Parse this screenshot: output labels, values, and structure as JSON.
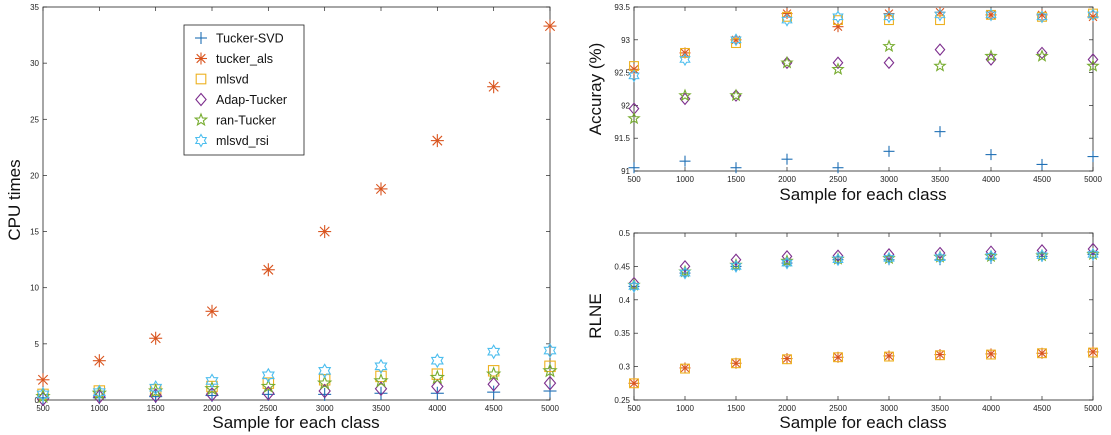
{
  "colors": {
    "Tucker-SVD": "#1f6fb5",
    "tucker_als": "#d9541e",
    "mlsvd": "#edb120",
    "Adap-Tucker": "#7e2f8e",
    "ran-Tucker": "#77ac30",
    "mlsvd_rsi": "#4dbeee"
  },
  "markers": {
    "Tucker-SVD": "plus",
    "tucker_als": "asterisk",
    "mlsvd": "square",
    "Adap-Tucker": "diamond",
    "ran-Tucker": "star",
    "mlsvd_rsi": "hexagram"
  },
  "chart_data": [
    {
      "id": "cpu",
      "type": "scatter",
      "xlabel": "Sample for each class",
      "ylabel": "CPU times",
      "x": [
        500,
        1000,
        1500,
        2000,
        2500,
        3000,
        3500,
        4000,
        4500,
        5000
      ],
      "xlim": [
        500,
        5000
      ],
      "ylim": [
        0,
        35
      ],
      "yticks": [
        0,
        5,
        10,
        15,
        20,
        25,
        30,
        35
      ],
      "ytick_labels": [
        "0",
        "5",
        "10",
        "15",
        "20",
        "25",
        "30",
        "35"
      ],
      "legend": "upper-middle",
      "series": [
        {
          "name": "Tucker-SVD",
          "values": [
            0.2,
            0.2,
            0.3,
            0.4,
            0.5,
            0.5,
            0.6,
            0.6,
            0.7,
            0.8
          ]
        },
        {
          "name": "tucker_als",
          "values": [
            1.8,
            3.5,
            5.5,
            7.9,
            11.6,
            15.0,
            18.8,
            23.1,
            27.9,
            33.3
          ]
        },
        {
          "name": "mlsvd",
          "values": [
            0.5,
            0.8,
            0.9,
            1.2,
            1.5,
            1.8,
            2.1,
            2.3,
            2.6,
            3.0
          ]
        },
        {
          "name": "Adap-Tucker",
          "values": [
            0.1,
            0.3,
            0.4,
            0.5,
            0.6,
            0.8,
            1.0,
            1.2,
            1.4,
            1.5
          ]
        },
        {
          "name": "ran-Tucker",
          "values": [
            0.3,
            0.6,
            0.8,
            1.0,
            1.2,
            1.5,
            1.7,
            2.0,
            2.3,
            2.6
          ]
        },
        {
          "name": "mlsvd_rsi",
          "values": [
            0.5,
            0.7,
            1.1,
            1.7,
            2.2,
            2.6,
            3.0,
            3.5,
            4.3,
            4.4
          ]
        }
      ]
    },
    {
      "id": "acc",
      "type": "scatter",
      "xlabel": "Sample for each class",
      "ylabel": "Accuray (%)",
      "x": [
        500,
        1000,
        1500,
        2000,
        2500,
        3000,
        3500,
        4000,
        4500,
        5000
      ],
      "xlim": [
        500,
        5000
      ],
      "ylim": [
        91,
        93.5
      ],
      "yticks": [
        91,
        91.5,
        92,
        92.5,
        93,
        93.5
      ],
      "ytick_labels": [
        "91",
        "91.5",
        "92",
        "92.5",
        "93",
        "93.5"
      ],
      "series": [
        {
          "name": "Tucker-SVD",
          "values": [
            91.05,
            91.15,
            91.05,
            91.18,
            91.05,
            91.3,
            91.6,
            91.25,
            91.1,
            91.22
          ]
        },
        {
          "name": "tucker_als",
          "values": [
            92.55,
            92.8,
            93.0,
            93.4,
            93.2,
            93.4,
            93.42,
            93.38,
            93.38,
            93.35
          ]
        },
        {
          "name": "mlsvd",
          "values": [
            92.6,
            92.8,
            92.95,
            93.35,
            93.3,
            93.3,
            93.3,
            93.38,
            93.35,
            93.4
          ]
        },
        {
          "name": "Adap-Tucker",
          "values": [
            91.95,
            92.1,
            92.15,
            92.65,
            92.65,
            92.65,
            92.85,
            92.7,
            92.8,
            92.7
          ]
        },
        {
          "name": "ran-Tucker",
          "values": [
            91.8,
            92.15,
            92.15,
            92.65,
            92.55,
            92.9,
            92.6,
            92.75,
            92.75,
            92.6
          ]
        },
        {
          "name": "mlsvd_rsi",
          "values": [
            92.45,
            92.7,
            93.0,
            93.3,
            93.35,
            93.35,
            93.38,
            93.38,
            93.35,
            93.38
          ]
        }
      ]
    },
    {
      "id": "rlne",
      "type": "scatter",
      "xlabel": "Sample for each class",
      "ylabel": "RLNE",
      "x": [
        500,
        1000,
        1500,
        2000,
        2500,
        3000,
        3500,
        4000,
        4500,
        5000
      ],
      "xlim": [
        500,
        5000
      ],
      "ylim": [
        0.25,
        0.5
      ],
      "yticks": [
        0.25,
        0.3,
        0.35,
        0.4,
        0.45,
        0.5
      ],
      "ytick_labels": [
        "0.25",
        "0.3",
        "0.35",
        "0.4",
        "0.45",
        "0.5"
      ],
      "series": [
        {
          "name": "Tucker-SVD",
          "values": [
            0.42,
            0.44,
            0.45,
            0.455,
            0.46,
            0.46,
            0.46,
            0.462,
            0.465,
            0.468
          ]
        },
        {
          "name": "tucker_als",
          "values": [
            0.275,
            0.298,
            0.305,
            0.312,
            0.314,
            0.316,
            0.318,
            0.319,
            0.32,
            0.322
          ]
        },
        {
          "name": "mlsvd",
          "values": [
            0.275,
            0.297,
            0.305,
            0.311,
            0.314,
            0.315,
            0.317,
            0.318,
            0.32,
            0.321
          ]
        },
        {
          "name": "Adap-Tucker",
          "values": [
            0.425,
            0.45,
            0.46,
            0.465,
            0.466,
            0.468,
            0.47,
            0.472,
            0.474,
            0.476
          ]
        },
        {
          "name": "ran-Tucker",
          "values": [
            0.422,
            0.442,
            0.452,
            0.458,
            0.461,
            0.462,
            0.464,
            0.465,
            0.466,
            0.468
          ]
        },
        {
          "name": "mlsvd_rsi",
          "values": [
            0.42,
            0.44,
            0.45,
            0.455,
            0.46,
            0.462,
            0.463,
            0.465,
            0.466,
            0.468
          ]
        }
      ]
    }
  ]
}
